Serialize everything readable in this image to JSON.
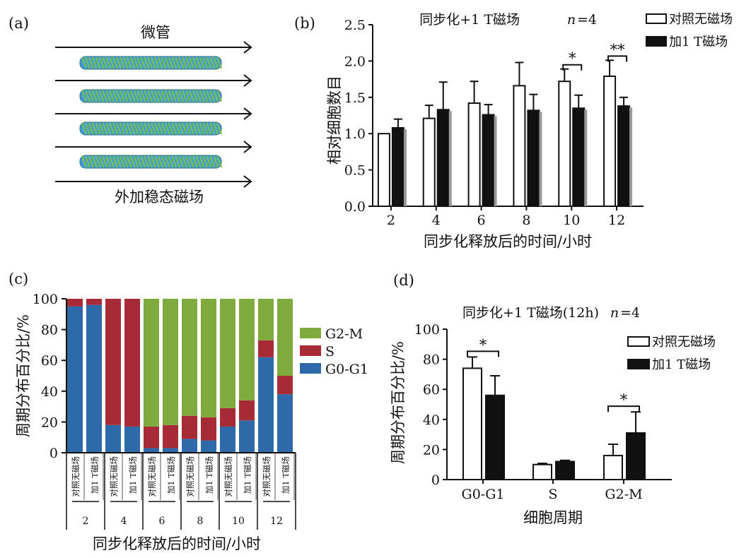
{
  "panels": {
    "a": {
      "label": "(a)",
      "top_text": "微管",
      "bottom_text": "外加稳态磁场"
    },
    "b": {
      "label": "(b)"
    },
    "c": {
      "label": "(c)"
    },
    "d": {
      "label": "(d)"
    }
  },
  "colors": {
    "control_fill": "#ffffff",
    "field_fill": "#111111",
    "error_bar": "#111111",
    "g2m": "#7fab3e",
    "s": "#a62b36",
    "g0g1": "#2e6aaa",
    "microtubule_a": "#3f9fd4",
    "microtubule_b": "#7cbf4f"
  },
  "chart_data": [
    {
      "panel": "b",
      "type": "bar",
      "title": "同步化+1 T磁场",
      "title_n": "n",
      "title_n_value": "=4",
      "xlabel": "同步化释放后的时间/小时",
      "ylabel": "相对细胞数目",
      "categories": [
        "2",
        "4",
        "6",
        "8",
        "10",
        "12"
      ],
      "ylim": [
        0,
        2.5
      ],
      "yticks": [
        "0.0",
        "0.5",
        "1.0",
        "1.5",
        "2.0",
        "2.5"
      ],
      "legend_position": "top-right",
      "series": [
        {
          "name": "对照无磁场",
          "values": [
            1.0,
            1.21,
            1.42,
            1.66,
            1.72,
            1.79
          ],
          "errors": [
            0.0,
            0.18,
            0.3,
            0.32,
            0.17,
            0.22
          ]
        },
        {
          "name": "加1 T磁场",
          "values": [
            1.08,
            1.33,
            1.26,
            1.32,
            1.35,
            1.38
          ],
          "errors": [
            0.12,
            0.38,
            0.14,
            0.22,
            0.18,
            0.12
          ]
        }
      ],
      "significance": [
        {
          "category": "10",
          "mark": "*"
        },
        {
          "category": "12",
          "mark": "**"
        }
      ]
    },
    {
      "panel": "c",
      "type": "bar",
      "stacked": true,
      "ylabel": "周期分布百分比/%",
      "xlabel": "同步化释放后的时间/小时",
      "ylim": [
        0,
        100
      ],
      "yticks": [
        "0",
        "20",
        "40",
        "60",
        "80",
        "100"
      ],
      "bar_labels": [
        "对照无磁场",
        "加1 T磁场",
        "对照无磁场",
        "加1 T磁场",
        "对照无磁场",
        "加1 T磁场",
        "对照无磁场",
        "加1 T磁场",
        "对照无磁场",
        "加1 T磁场",
        "对照无磁场",
        "加1 T磁场"
      ],
      "groups": [
        "2",
        "4",
        "6",
        "8",
        "10",
        "12"
      ],
      "legend_position": "right",
      "series": [
        {
          "name": "G0-G1",
          "values": [
            95,
            96,
            18,
            17,
            3,
            3,
            9,
            8,
            17,
            21,
            62,
            38
          ]
        },
        {
          "name": "S",
          "values": [
            5,
            4,
            82,
            83,
            14,
            15,
            15,
            15,
            12,
            13,
            11,
            12
          ]
        },
        {
          "name": "G2-M",
          "values": [
            0,
            0,
            0,
            0,
            83,
            82,
            76,
            77,
            71,
            66,
            27,
            50
          ]
        }
      ]
    },
    {
      "panel": "d",
      "type": "bar",
      "title": "同步化+1 T磁场(12h)",
      "title_n": "n",
      "title_n_value": "=4",
      "xlabel": "细胞周期",
      "ylabel": "周期分布百分比/%",
      "categories": [
        "G0-G1",
        "S",
        "G2-M"
      ],
      "ylim": [
        0,
        100
      ],
      "yticks": [
        "0",
        "20",
        "40",
        "60",
        "80",
        "100"
      ],
      "legend_position": "top-right",
      "series": [
        {
          "name": "对照无磁场",
          "values": [
            74,
            10,
            16
          ],
          "errors": [
            7.5,
            0.8,
            7.5
          ]
        },
        {
          "name": "加1 T磁场",
          "values": [
            56,
            12,
            31
          ],
          "errors": [
            13,
            0.8,
            14
          ]
        }
      ],
      "significance": [
        {
          "category": "G0-G1",
          "mark": "*"
        },
        {
          "category": "G2-M",
          "mark": "*"
        }
      ]
    }
  ]
}
